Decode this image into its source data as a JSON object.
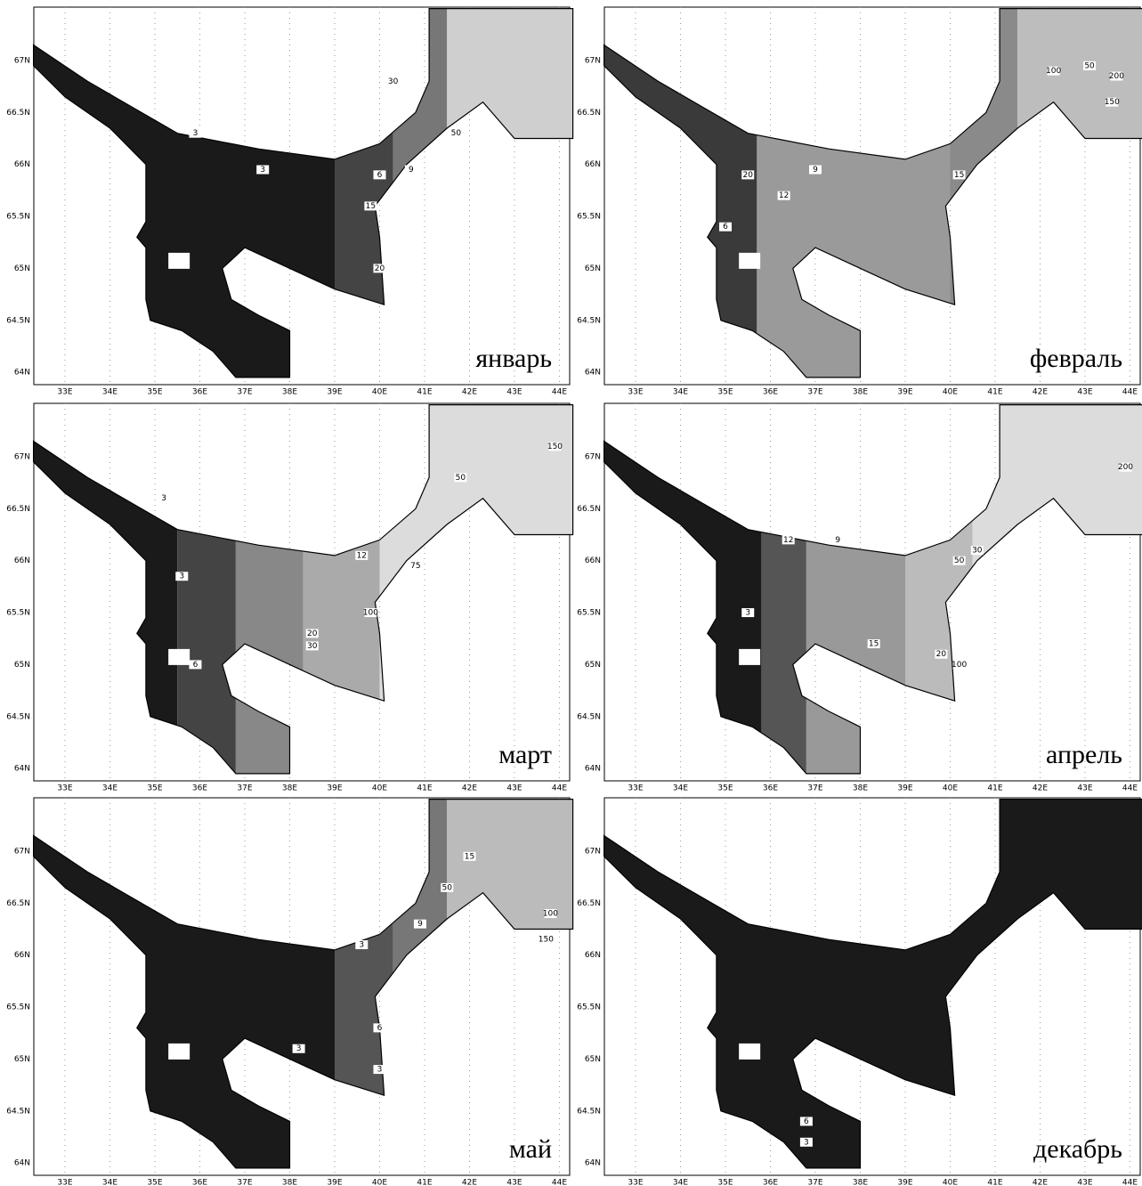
{
  "lon_labels": [
    "33E",
    "34E",
    "35E",
    "36E",
    "37E",
    "38E",
    "39E",
    "40E",
    "41E",
    "42E",
    "43E",
    "44E"
  ],
  "lat_labels": [
    "64N",
    "64.5N",
    "65N",
    "65.5N",
    "66N",
    "66.5N",
    "67N"
  ],
  "panels": [
    {
      "month": "январь",
      "contour_labels": [
        "3",
        "3",
        "6",
        "9",
        "15",
        "20",
        "30",
        "50"
      ]
    },
    {
      "month": "февраль",
      "contour_labels": [
        "6",
        "9",
        "12",
        "15",
        "20",
        "50",
        "100",
        "150",
        "200"
      ]
    },
    {
      "month": "март",
      "contour_labels": [
        "3",
        "3",
        "6",
        "12",
        "20",
        "30",
        "50",
        "75",
        "100",
        "150"
      ]
    },
    {
      "month": "апрель",
      "contour_labels": [
        "3",
        "9",
        "12",
        "15",
        "20",
        "30",
        "50",
        "100",
        "200"
      ]
    },
    {
      "month": "май",
      "contour_labels": [
        "3",
        "3",
        "6",
        "3",
        "9",
        "15",
        "50",
        "100",
        "150"
      ]
    },
    {
      "month": "декабрь",
      "contour_labels": [
        "6",
        "3"
      ]
    }
  ]
}
